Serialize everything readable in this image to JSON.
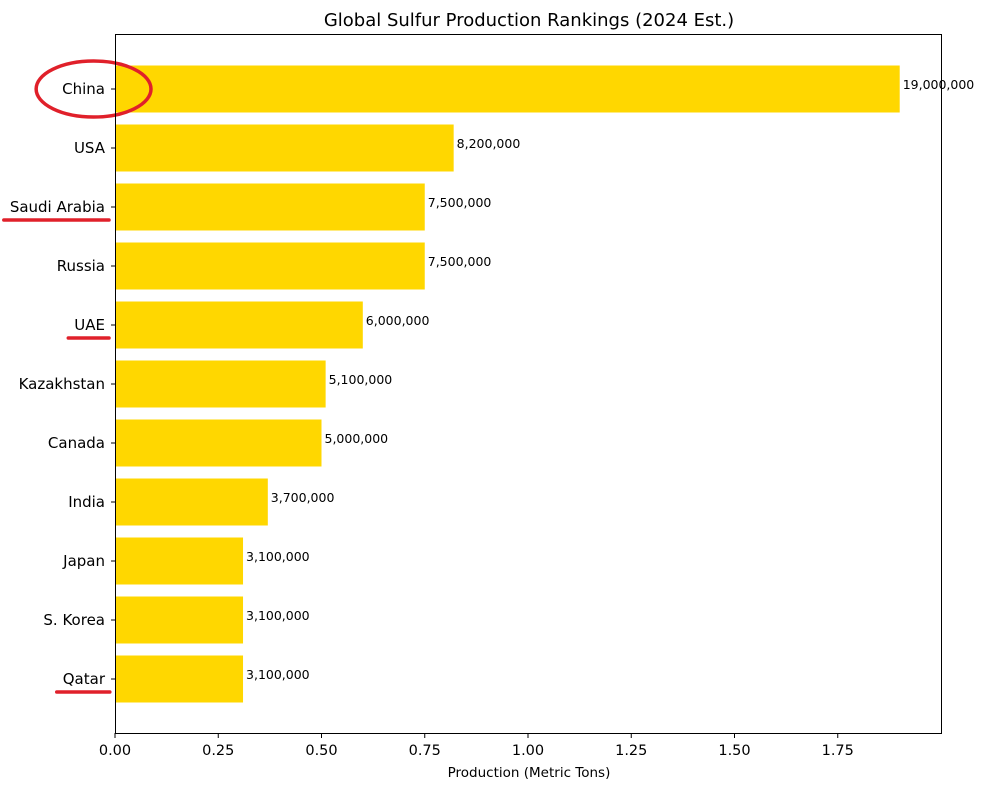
{
  "chart_data": {
    "type": "bar",
    "orientation": "horizontal",
    "title": "Global Sulfur Production Rankings (2024 Est.)",
    "xlabel": "Production (Metric Tons)",
    "ylabel": "",
    "xlim": [
      0,
      2.0
    ],
    "axis_scale": 10000000,
    "grid": false,
    "bar_color": "#FFD700",
    "annotation_color": "#E0202A",
    "categories": [
      "China",
      "USA",
      "Saudi Arabia",
      "Russia",
      "UAE",
      "Kazakhstan",
      "Canada",
      "India",
      "Japan",
      "S. Korea",
      "Qatar"
    ],
    "values": [
      19000000,
      8200000,
      7500000,
      7500000,
      6000000,
      5100000,
      5000000,
      3700000,
      3100000,
      3100000,
      3100000
    ],
    "value_labels": [
      "19,000,000",
      "8,200,000",
      "7,500,000",
      "7,500,000",
      "6,000,000",
      "5,100,000",
      "5,000,000",
      "3,700,000",
      "3,100,000",
      "3,100,000",
      "3,100,000"
    ],
    "xticks": [
      0.0,
      0.25,
      0.5,
      0.75,
      1.0,
      1.25,
      1.5,
      1.75
    ],
    "xtick_labels": [
      "0.00",
      "0.25",
      "0.50",
      "0.75",
      "1.00",
      "1.25",
      "1.50",
      "1.75"
    ],
    "annotations": [
      {
        "type": "circle",
        "target": "China"
      },
      {
        "type": "underline",
        "target": "Saudi Arabia"
      },
      {
        "type": "underline",
        "target": "UAE"
      },
      {
        "type": "underline",
        "target": "Qatar"
      }
    ]
  }
}
